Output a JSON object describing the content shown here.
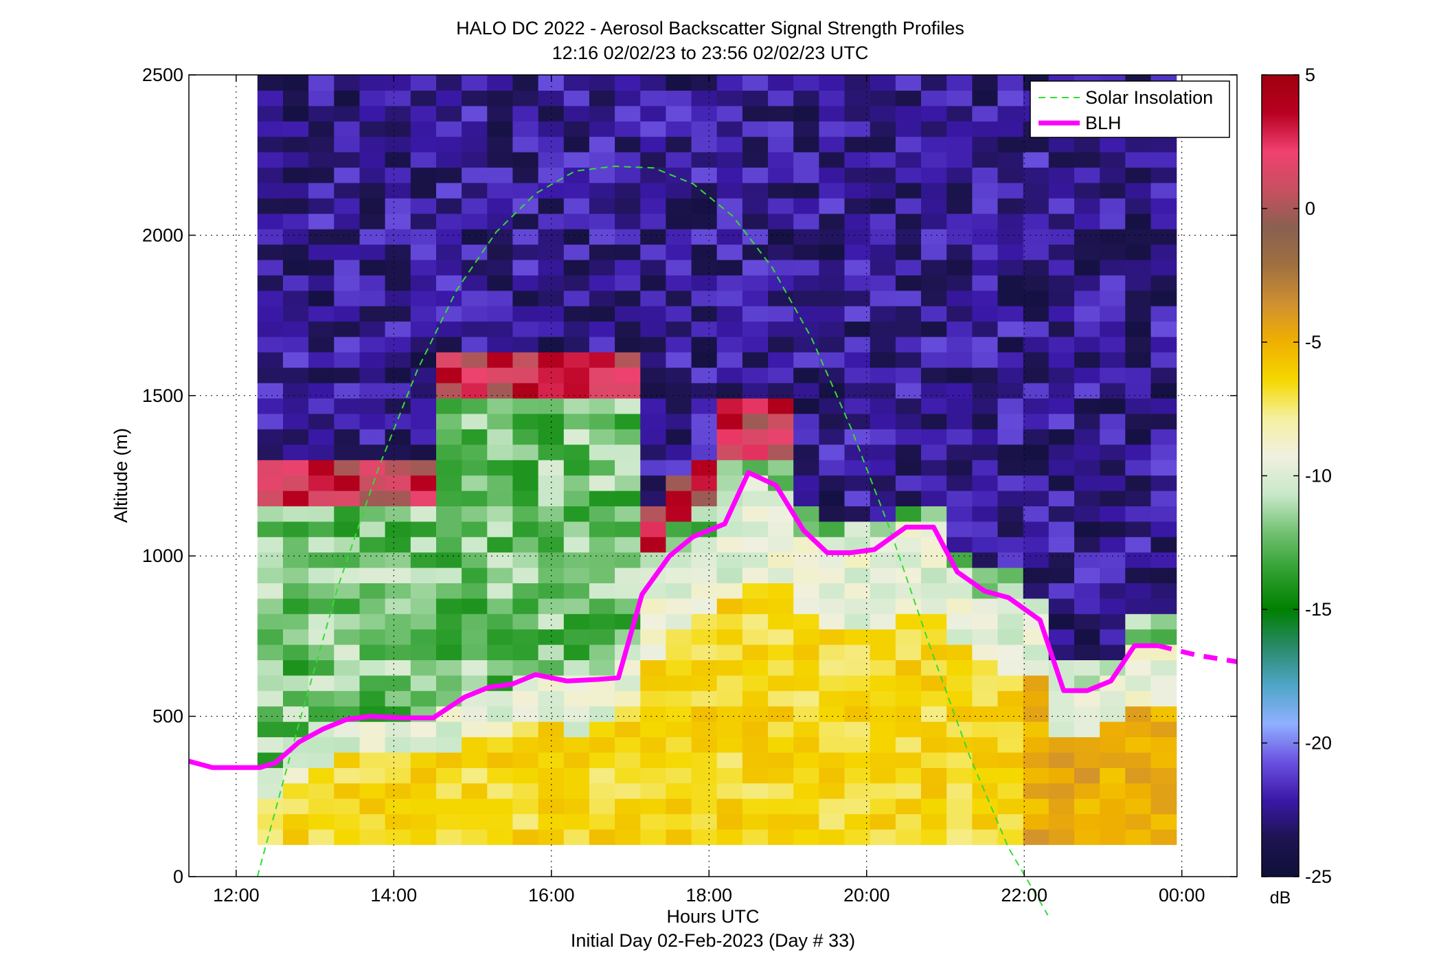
{
  "chart_data": {
    "type": "heatmap",
    "title": "HALO DC 2022 - Aerosol Backscatter Signal Strength Profiles",
    "subtitle": "12:16 02/02/23 to 23:56 02/02/23  UTC",
    "xlabel": "Hours UTC",
    "xlabel2": "Initial Day 02-Feb-2023 (Day # 33)",
    "ylabel": "Altitude (m)",
    "xlim": [
      11.4,
      24.7
    ],
    "ylim": [
      0,
      2500
    ],
    "x_ticks": [
      12,
      14,
      16,
      18,
      20,
      22,
      24
    ],
    "x_tick_labels": [
      "12:00",
      "14:00",
      "16:00",
      "18:00",
      "20:00",
      "22:00",
      "00:00"
    ],
    "y_ticks": [
      0,
      500,
      1000,
      1500,
      2000,
      2500
    ],
    "y_tick_labels": [
      "0",
      "500",
      "1000",
      "1500",
      "2000",
      "2500"
    ],
    "grid": true,
    "legend_position": "top-right",
    "heatmap": {
      "x_start_hours": 12.27,
      "x_end_hours": 23.93,
      "y_start_m": 100,
      "y_end_m": 2500,
      "colorbar_label": "dB",
      "colorbar_range": [
        -25,
        5
      ],
      "colorbar_ticks": [
        5,
        0,
        -5,
        -10,
        -15,
        -20,
        -25
      ],
      "colorbar_tick_labels": [
        "5",
        "0",
        "-5",
        "-10",
        "-15",
        "-20",
        "-25"
      ],
      "colorbar_colors": [
        "#0f0f3a",
        "#1e1450",
        "#3a18a8",
        "#6a50e0",
        "#8fb0ff",
        "#4fa6c8",
        "#2a8a6a",
        "#008000",
        "#30a030",
        "#70c070",
        "#c8e8c8",
        "#f0f0e0",
        "#f5f0a0",
        "#f5d800",
        "#f0b000",
        "#d09030",
        "#a07040",
        "#8a6050",
        "#c85060",
        "#f04070",
        "#b80020",
        "#a00010"
      ]
    },
    "series": [
      {
        "name": "Solar Insolation",
        "color": "#33dd33",
        "x": [
          12.27,
          12.8,
          13.3,
          13.8,
          14.3,
          14.8,
          15.3,
          15.8,
          16.3,
          16.8,
          17.3,
          17.8,
          18.3,
          18.8,
          19.3,
          19.8,
          20.3,
          20.8,
          21.3,
          21.8,
          22.3
        ],
        "y": [
          0,
          480,
          910,
          1270,
          1580,
          1830,
          2010,
          2130,
          2200,
          2215,
          2210,
          2160,
          2060,
          1900,
          1680,
          1400,
          1080,
          720,
          380,
          90,
          -120
        ]
      },
      {
        "name": "BLH",
        "color": "#ff00ff",
        "x": [
          11.4,
          11.7,
          12.0,
          12.3,
          12.5,
          12.8,
          13.1,
          13.4,
          13.7,
          14.1,
          14.5,
          14.9,
          15.2,
          15.5,
          15.8,
          16.2,
          16.6,
          16.85,
          17.15,
          17.5,
          17.8,
          18.2,
          18.5,
          18.85,
          19.2,
          19.5,
          19.8,
          20.1,
          20.5,
          20.85,
          21.15,
          21.5,
          21.8,
          22.2,
          22.5,
          22.8,
          23.1,
          23.4,
          23.7
        ],
        "y": [
          360,
          340,
          340,
          340,
          355,
          420,
          460,
          490,
          500,
          495,
          495,
          560,
          590,
          600,
          630,
          610,
          615,
          620,
          880,
          1000,
          1060,
          1100,
          1260,
          1220,
          1080,
          1010,
          1010,
          1020,
          1090,
          1090,
          950,
          890,
          870,
          800,
          580,
          580,
          610,
          720,
          720
        ],
        "dashed_extension": {
          "x": [
            23.7,
            24.2,
            24.7
          ],
          "y": [
            720,
            690,
            670
          ]
        }
      }
    ]
  }
}
